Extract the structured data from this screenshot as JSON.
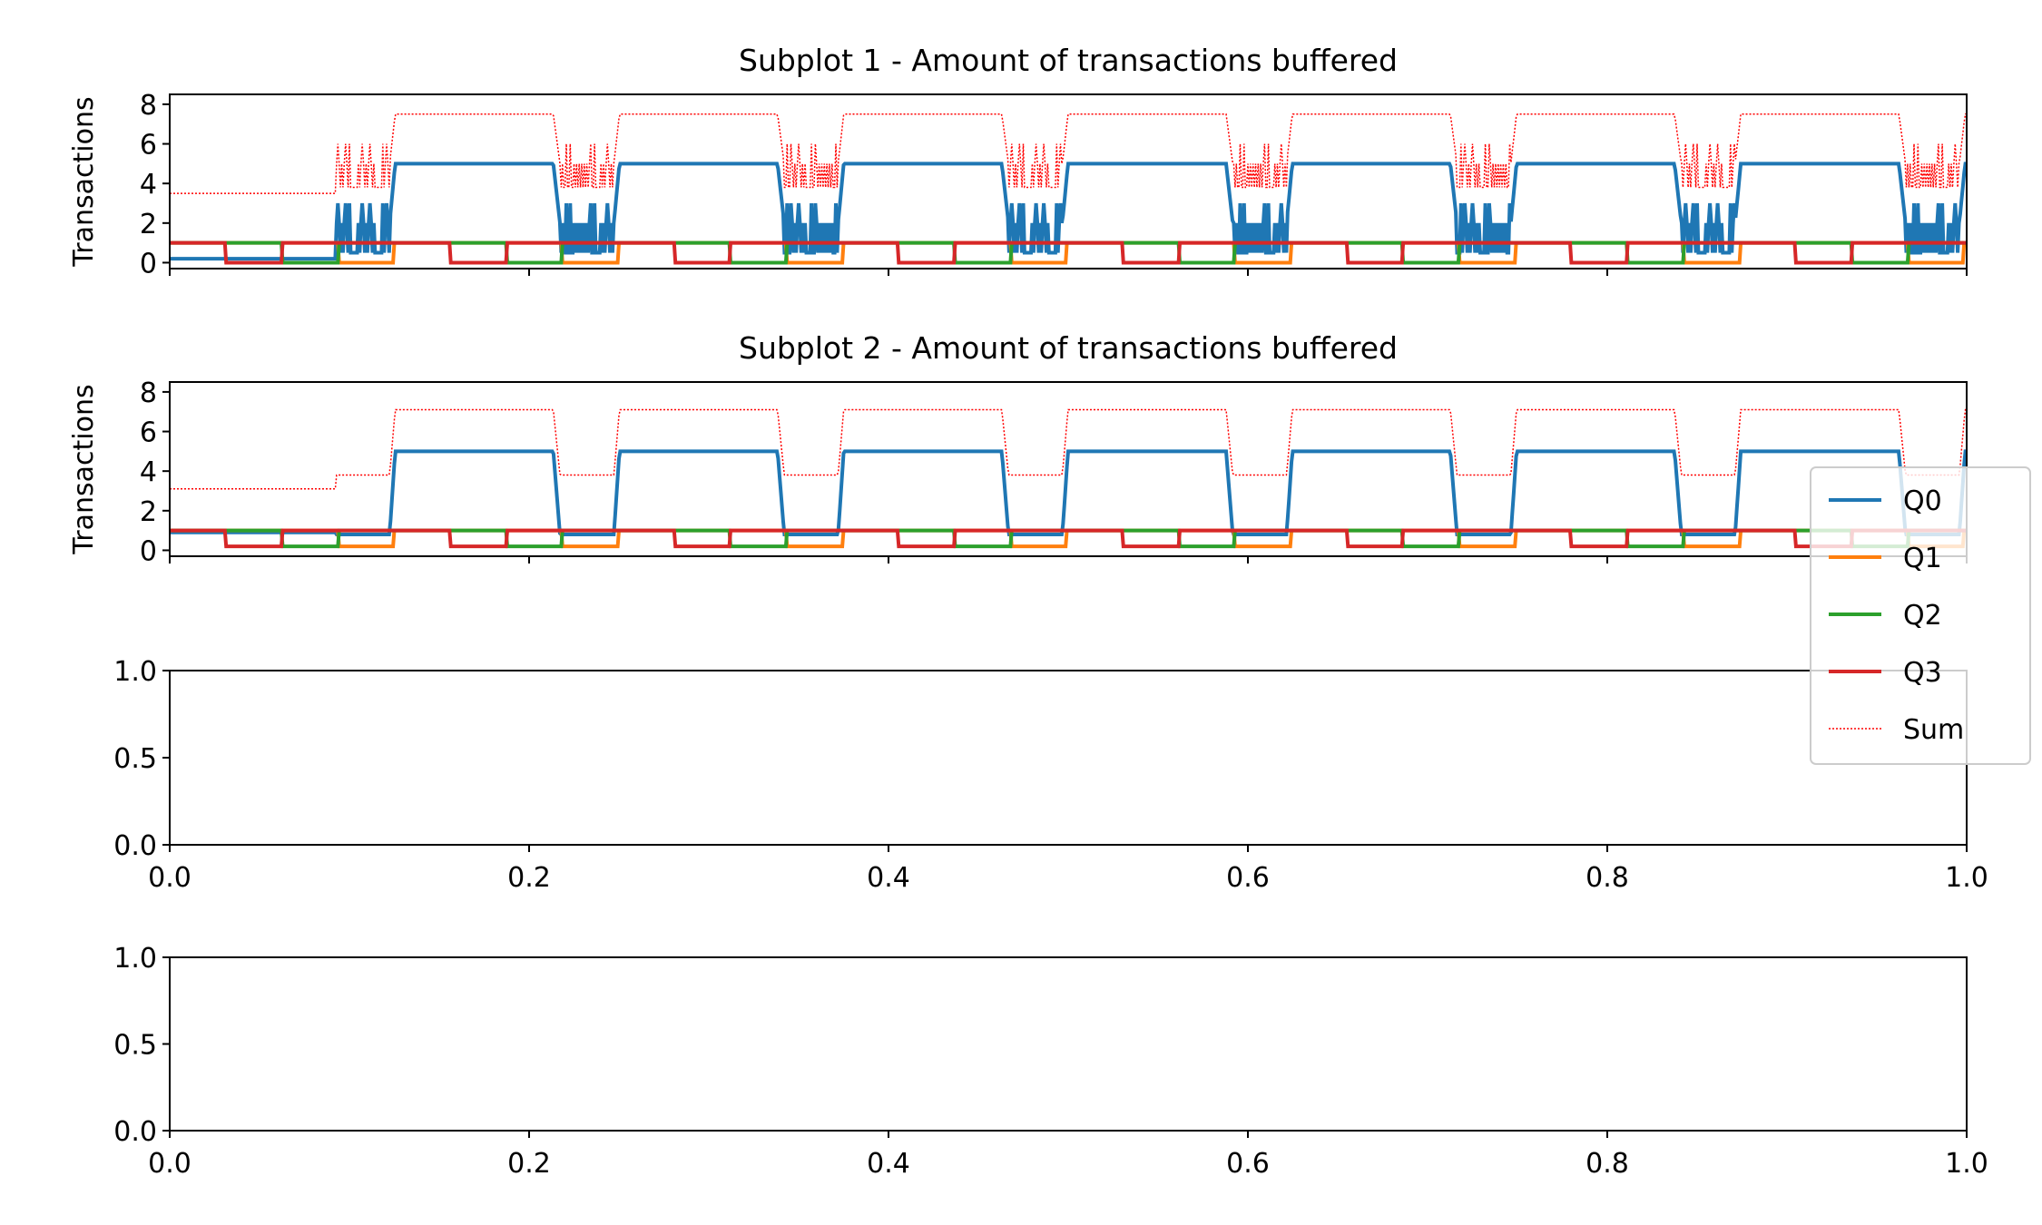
{
  "chart_data": [
    {
      "type": "line",
      "title": "Subplot 1 - Amount of transactions buffered",
      "xlabel": "",
      "ylabel": "Transactions",
      "xlim": [
        0,
        1
      ],
      "ylim": [
        -0.3,
        8.5
      ],
      "yticks": [
        "0",
        "2",
        "4",
        "6",
        "8"
      ],
      "x_tick_labels_shown": false,
      "period": 0.1248,
      "cycle_start": 0.0924,
      "series": [
        {
          "name": "Q0",
          "color": "#1f77b4",
          "style": "solid",
          "phases": {
            "baseline": 0.2,
            "low": 0.5,
            "busy": 2.0,
            "high": 5.0
          }
        },
        {
          "name": "Q1",
          "color": "#ff7f0e",
          "style": "solid",
          "levels": [
            0,
            1
          ]
        },
        {
          "name": "Q2",
          "color": "#2ca02c",
          "style": "solid",
          "levels": [
            0,
            1
          ]
        },
        {
          "name": "Q3",
          "color": "#d62728",
          "style": "solid",
          "levels": [
            0,
            1
          ]
        },
        {
          "name": "Sum",
          "color": "#ff0000",
          "style": "dotted",
          "phases": {
            "baseline": 3.5,
            "low": 3.8,
            "busy": 5.0,
            "high": 7.5
          }
        }
      ]
    },
    {
      "type": "line",
      "title": "Subplot 2 - Amount of transactions buffered",
      "xlabel": "",
      "ylabel": "Transactions",
      "xlim": [
        0,
        1
      ],
      "ylim": [
        -0.3,
        8.5
      ],
      "yticks": [
        "0",
        "2",
        "4",
        "6",
        "8"
      ],
      "x_tick_labels_shown": false,
      "period": 0.1248,
      "cycle_start": 0.0924,
      "series": [
        {
          "name": "Q0",
          "color": "#1f77b4",
          "style": "solid",
          "phases": {
            "baseline": 0.9,
            "busy": 0.8,
            "high": 5.0
          }
        },
        {
          "name": "Q1",
          "color": "#ff7f0e",
          "style": "solid",
          "levels": [
            0.2,
            1.0
          ]
        },
        {
          "name": "Q2",
          "color": "#2ca02c",
          "style": "solid",
          "levels": [
            0.2,
            1.0
          ]
        },
        {
          "name": "Q3",
          "color": "#d62728",
          "style": "solid",
          "levels": [
            0.2,
            1.0
          ]
        },
        {
          "name": "Sum",
          "color": "#ff0000",
          "style": "dotted",
          "phases": {
            "baseline": 3.1,
            "busy": 3.8,
            "high": 7.1
          }
        }
      ]
    },
    {
      "type": "line",
      "title": "",
      "xlabel": "",
      "ylabel": "",
      "xlim": [
        0,
        1
      ],
      "ylim": [
        0,
        1
      ],
      "xticks": [
        "0.0",
        "0.2",
        "0.4",
        "0.6",
        "0.8",
        "1.0"
      ],
      "yticks": [
        "0.0",
        "0.5",
        "1.0"
      ],
      "series": []
    },
    {
      "type": "line",
      "title": "",
      "xlabel": "",
      "ylabel": "",
      "xlim": [
        0,
        1
      ],
      "ylim": [
        0,
        1
      ],
      "xticks": [
        "0.0",
        "0.2",
        "0.4",
        "0.6",
        "0.8",
        "1.0"
      ],
      "yticks": [
        "0.0",
        "0.5",
        "1.0"
      ],
      "series": []
    }
  ],
  "legend": {
    "location": "right, overlapping subplot 2 and subplot 3",
    "entries": [
      {
        "label": "Q0",
        "color": "#1f77b4",
        "style": "solid"
      },
      {
        "label": "Q1",
        "color": "#ff7f0e",
        "style": "solid"
      },
      {
        "label": "Q2",
        "color": "#2ca02c",
        "style": "solid"
      },
      {
        "label": "Q3",
        "color": "#d62728",
        "style": "solid"
      },
      {
        "label": "Sum",
        "color": "#ff0000",
        "style": "dotted"
      }
    ]
  }
}
